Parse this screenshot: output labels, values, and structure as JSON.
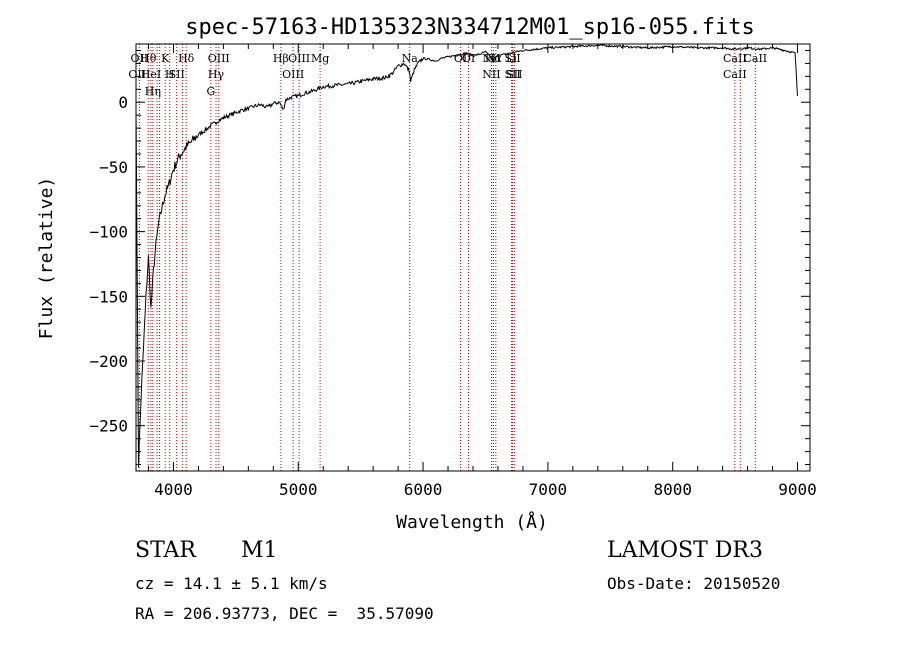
{
  "chart_data": {
    "type": "line",
    "title": "spec-57163-HD135323N334712M01_sp16-055.fits",
    "xlabel": "Wavelength (Å)",
    "ylabel": "Flux (relative)",
    "xlim": [
      3700,
      9100
    ],
    "ylim": [
      -285,
      45
    ],
    "xticks": [
      4000,
      5000,
      6000,
      7000,
      8000,
      9000
    ],
    "yticks": [
      0,
      -50,
      -100,
      -150,
      -200,
      -250
    ],
    "grid": false,
    "line_color": "#000000",
    "marker_color": "#b40000",
    "series": [
      {
        "x": [
          3700,
          3720,
          3740,
          3760,
          3780,
          3800,
          3820,
          3840,
          3860,
          3880,
          3900,
          3930,
          3960,
          3980,
          4000,
          4030,
          4060,
          4100,
          4150,
          4200,
          4250,
          4300,
          4350,
          4400,
          4450,
          4500,
          4550,
          4600,
          4650,
          4700,
          4750,
          4800,
          4850,
          4880,
          4900,
          4950,
          5000,
          5050,
          5100,
          5150,
          5200,
          5300,
          5400,
          5500,
          5600,
          5700,
          5750,
          5800,
          5850,
          5890,
          5900,
          5930,
          5960,
          6000,
          6050,
          6100,
          6150,
          6200,
          6300,
          6350,
          6400,
          6450,
          6500,
          6560,
          6600,
          6700,
          6800,
          6900,
          7000,
          7200,
          7400,
          7600,
          7800,
          8000,
          8200,
          8400,
          8500,
          8600,
          8700,
          8800,
          8900,
          8980,
          9000
        ],
        "y": [
          0,
          -280,
          -230,
          -190,
          -150,
          -120,
          -160,
          -130,
          -110,
          -95,
          -85,
          -72,
          -65,
          -58,
          -52,
          -45,
          -40,
          -35,
          -30,
          -25,
          -22,
          -18,
          -15,
          -12,
          -10,
          -8,
          -6,
          -5,
          -3,
          -2,
          -4,
          -1,
          0,
          -6,
          2,
          4,
          5,
          7,
          8,
          10,
          12,
          13,
          14,
          16,
          18,
          19,
          22,
          28,
          30,
          24,
          16,
          25,
          30,
          34,
          33,
          32,
          34,
          35,
          37,
          38,
          36,
          37,
          39,
          33,
          36,
          38,
          40,
          41,
          42,
          43,
          44,
          43,
          42,
          43,
          42,
          42,
          41,
          42,
          41,
          42,
          40,
          38,
          5
        ]
      }
    ],
    "lines": [
      {
        "wl": 3727,
        "labels": [
          "OII",
          "OIII"
        ]
      },
      {
        "wl": 3798,
        "labels": [
          "Hθ",
          ""
        ]
      },
      {
        "wl": 3820,
        "labels": [
          "",
          "HeI",
          ""
        ]
      },
      {
        "wl": 3835,
        "labels": [
          "",
          "",
          "Hη"
        ]
      },
      {
        "wl": 3869,
        "labels": [
          "",
          "",
          ""
        ]
      },
      {
        "wl": 3889,
        "labels": [
          "",
          "",
          ""
        ]
      },
      {
        "wl": 3934,
        "labels": [
          "K",
          ""
        ]
      },
      {
        "wl": 3970,
        "labels": [
          "",
          "H"
        ]
      },
      {
        "wl": 4026,
        "labels": [
          "",
          "SII"
        ]
      },
      {
        "wl": 4072,
        "labels": [
          "",
          ""
        ]
      },
      {
        "wl": 4102,
        "labels": [
          "Hδ"
        ]
      },
      {
        "wl": 4300,
        "labels": [
          "",
          "",
          "G"
        ]
      },
      {
        "wl": 4341,
        "labels": [
          "",
          "Hγ"
        ]
      },
      {
        "wl": 4363,
        "labels": [
          "OIII"
        ]
      },
      {
        "wl": 4861,
        "labels": [
          "Hβ"
        ]
      },
      {
        "wl": 4959,
        "labels": [
          "",
          "OIII"
        ]
      },
      {
        "wl": 5007,
        "labels": [
          "OIII"
        ]
      },
      {
        "wl": 5175,
        "labels": [
          "Mg"
        ]
      },
      {
        "wl": 5893,
        "labels": [
          "Na"
        ]
      },
      {
        "wl": 6300,
        "labels": [
          "OI"
        ]
      },
      {
        "wl": 6364,
        "labels": [
          "OI"
        ]
      },
      {
        "wl": 6548,
        "labels": [
          "NII",
          "NII"
        ]
      },
      {
        "wl": 6563,
        "labels": [
          "Hα"
        ]
      },
      {
        "wl": 6583,
        "labels": [
          ""
        ]
      },
      {
        "wl": 6708,
        "labels": [
          "Li"
        ]
      },
      {
        "wl": 6717,
        "labels": [
          "SII",
          "SII"
        ]
      },
      {
        "wl": 6731,
        "labels": [
          "",
          "SII"
        ]
      },
      {
        "wl": 8498,
        "labels": [
          "CaII",
          "CaII"
        ]
      },
      {
        "wl": 8542,
        "labels": [
          "",
          ""
        ]
      },
      {
        "wl": 8662,
        "labels": [
          "CaII"
        ]
      }
    ]
  },
  "info": {
    "object_class": "STAR",
    "subclass": "M1",
    "survey": "LAMOST DR3",
    "velocity": "cz = 14.1 ± 5.1 km/s",
    "obs_date": "Obs-Date: 20150520",
    "coords": "RA = 206.93773, DEC =  35.57090"
  }
}
